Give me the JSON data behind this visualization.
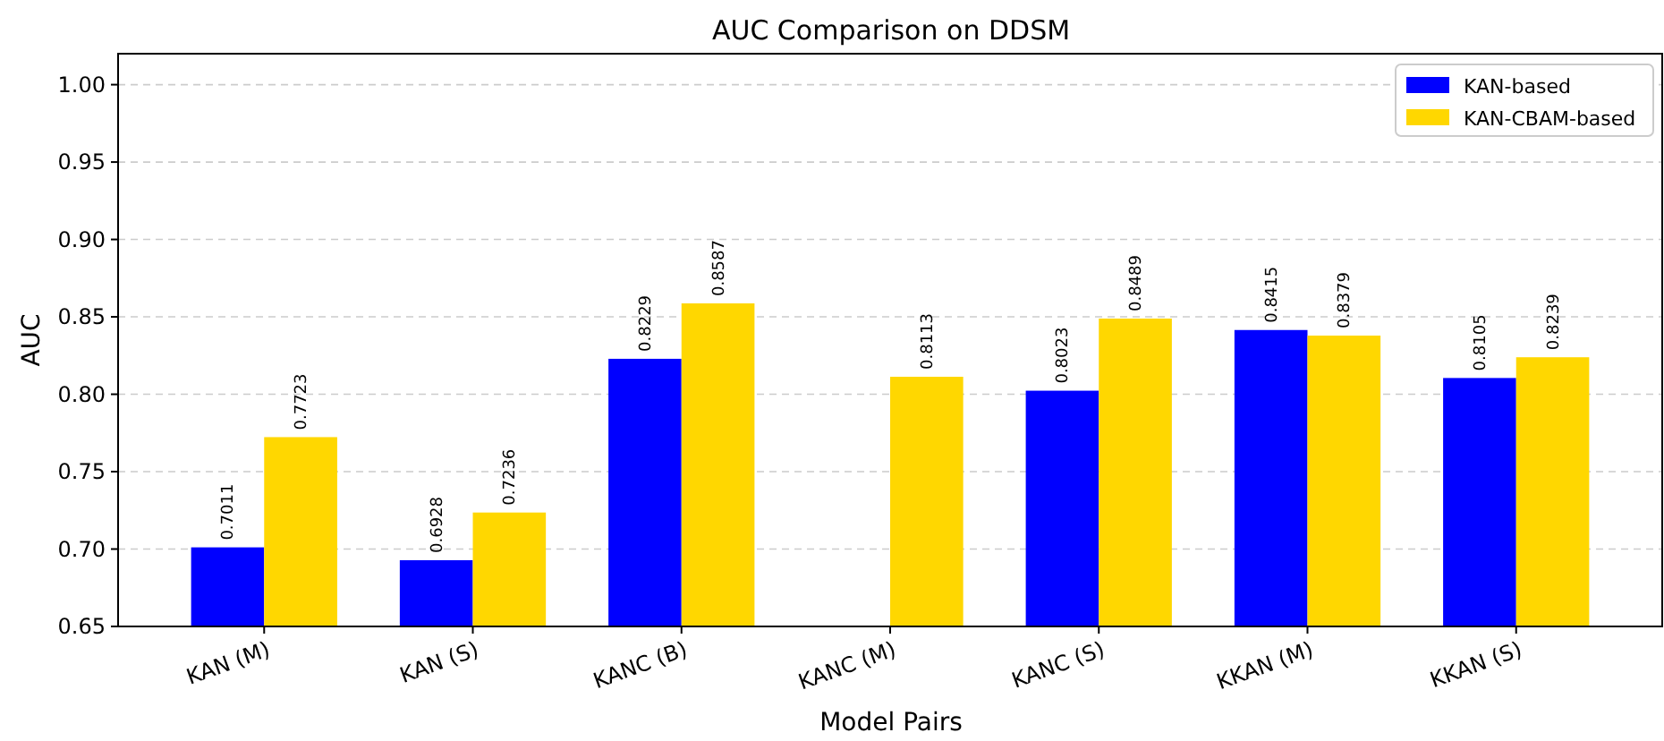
{
  "chart_data": {
    "type": "bar",
    "title": "AUC Comparison on DDSM",
    "xlabel": "Model Pairs",
    "ylabel": "AUC",
    "categories": [
      "KAN (M)",
      "KAN (S)",
      "KANC (B)",
      "KANC (M)",
      "KANC (S)",
      "KKAN (M)",
      "KKAN (S)"
    ],
    "series": [
      {
        "name": "KAN-based",
        "color": "#0000ff",
        "values": [
          0.7011,
          0.6928,
          0.8229,
          null,
          0.8023,
          0.8415,
          0.8105
        ]
      },
      {
        "name": "KAN-CBAM-based",
        "color": "#ffd700",
        "values": [
          0.7723,
          0.7236,
          0.8587,
          0.8113,
          0.8489,
          0.8379,
          0.8239
        ]
      }
    ],
    "ylim": [
      0.65,
      1.02
    ],
    "yticks": [
      {
        "value": 0.65,
        "label": "0.65"
      },
      {
        "value": 0.7,
        "label": "0.70"
      },
      {
        "value": 0.75,
        "label": "0.75"
      },
      {
        "value": 0.8,
        "label": "0.80"
      },
      {
        "value": 0.85,
        "label": "0.85"
      },
      {
        "value": 0.9,
        "label": "0.90"
      },
      {
        "value": 0.95,
        "label": "0.95"
      },
      {
        "value": 1.0,
        "label": "1.00"
      }
    ],
    "grid": "y",
    "legend": "top right",
    "data_labels": true
  }
}
